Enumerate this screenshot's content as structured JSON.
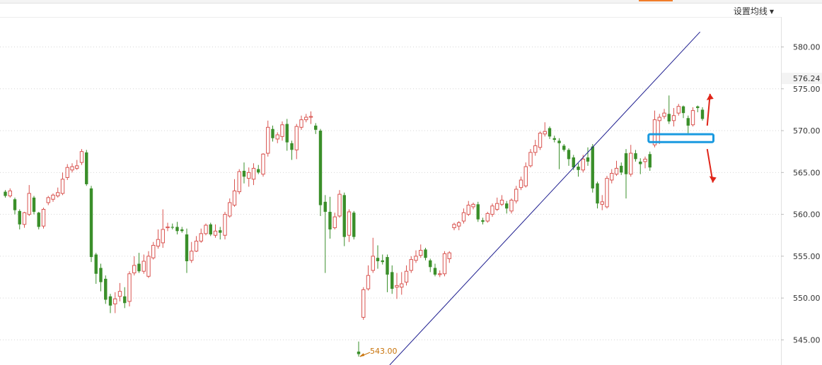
{
  "toolbar": {
    "ma_settings_label": "设置均线"
  },
  "chart_data": {
    "type": "candlestick",
    "y_axis": {
      "ticks": [
        545,
        550,
        555,
        560,
        565,
        570,
        575,
        580
      ],
      "ylim": [
        542.0,
        583.5
      ],
      "position": "right",
      "grid": "dotted-horizontal"
    },
    "current_price": "576.24",
    "low_annotation": {
      "label": "543.00",
      "value": 543.0
    },
    "colors": {
      "up": "#d9534f",
      "down": "#3a8f2a",
      "trendline": "#1d1d8f",
      "annotation": "#c8730a",
      "support_box": "#1a9ae0",
      "arrows": "#e02418"
    },
    "trendline": {
      "start": [
        80.5,
        542.0
      ],
      "end": [
        145.5,
        581.8
      ]
    },
    "support_zone": {
      "from_index": 135,
      "to_index": 148,
      "low": 568.8,
      "high": 569.4
    },
    "arrows": [
      {
        "direction": "up",
        "at_index": 147,
        "from": 570.6,
        "to": 574.4
      },
      {
        "direction": "down",
        "at_index": 147,
        "from": 567.8,
        "to": 563.8
      }
    ],
    "candles": [
      [
        562.7,
        562.2,
        562.9,
        562.0
      ],
      [
        562.2,
        562.8,
        563.1,
        562.0
      ],
      [
        561.8,
        560.5,
        562.0,
        560.0
      ],
      [
        560.4,
        558.8,
        560.6,
        558.2
      ],
      [
        558.8,
        560.2,
        560.3,
        558.4
      ],
      [
        560.0,
        562.5,
        563.5,
        559.8
      ],
      [
        562.0,
        560.3,
        562.2,
        560.0
      ],
      [
        560.2,
        558.5,
        560.3,
        558.2
      ],
      [
        558.6,
        560.6,
        560.8,
        558.3
      ],
      [
        561.4,
        562.0,
        562.2,
        561.1
      ],
      [
        561.8,
        562.3,
        562.5,
        561.5
      ],
      [
        562.2,
        562.6,
        563.2,
        562.0
      ],
      [
        562.5,
        564.2,
        565.0,
        562.3
      ],
      [
        564.4,
        565.6,
        566.0,
        564.1
      ],
      [
        565.3,
        565.7,
        566.1,
        565.0
      ],
      [
        565.5,
        565.8,
        566.5,
        565.3
      ],
      [
        566.2,
        567.5,
        567.8,
        565.9
      ],
      [
        567.4,
        563.6,
        567.7,
        563.4
      ],
      [
        563.1,
        554.9,
        563.4,
        554.3
      ],
      [
        555.2,
        552.9,
        555.4,
        551.7
      ],
      [
        553.6,
        551.9,
        554.1,
        550.8
      ],
      [
        552.3,
        549.8,
        552.7,
        549.3
      ],
      [
        550.2,
        549.1,
        550.5,
        548.2
      ],
      [
        549.3,
        549.9,
        550.7,
        548.2
      ],
      [
        550.2,
        550.8,
        551.8,
        549.6
      ],
      [
        550.2,
        549.4,
        551.3,
        548.8
      ],
      [
        549.6,
        552.9,
        553.2,
        549.0
      ],
      [
        553.0,
        553.9,
        555.0,
        552.7
      ],
      [
        554.1,
        553.2,
        555.4,
        553.0
      ],
      [
        553.2,
        554.4,
        555.2,
        552.9
      ],
      [
        552.6,
        555.0,
        555.6,
        552.4
      ],
      [
        554.8,
        556.3,
        556.7,
        554.6
      ],
      [
        556.2,
        557.0,
        558.2,
        555.9
      ],
      [
        556.6,
        558.2,
        560.6,
        556.0
      ],
      [
        558.4,
        558.5,
        559.0,
        558.0
      ],
      [
        558.5,
        558.4,
        558.9,
        558.2
      ],
      [
        558.5,
        558.0,
        559.1,
        557.6
      ],
      [
        558.2,
        558.0,
        558.5,
        557.8
      ],
      [
        557.6,
        554.4,
        558.3,
        553.0
      ],
      [
        554.5,
        555.6,
        556.7,
        554.2
      ],
      [
        555.6,
        556.8,
        557.4,
        555.5
      ],
      [
        556.8,
        557.7,
        558.3,
        556.6
      ],
      [
        557.7,
        558.7,
        558.9,
        557.5
      ],
      [
        558.8,
        557.6,
        559.0,
        557.4
      ],
      [
        557.5,
        558.0,
        558.8,
        557.2
      ],
      [
        558.1,
        557.8,
        558.5,
        557.0
      ],
      [
        557.5,
        560.0,
        560.3,
        557.0
      ],
      [
        559.8,
        561.4,
        561.9,
        559.6
      ],
      [
        561.1,
        562.8,
        564.2,
        560.9
      ],
      [
        562.7,
        565.1,
        565.4,
        562.4
      ],
      [
        565.2,
        564.5,
        566.2,
        563.7
      ],
      [
        564.3,
        565.0,
        565.6,
        563.3
      ],
      [
        564.2,
        565.5,
        566.1,
        563.5
      ],
      [
        565.4,
        565.0,
        565.9,
        564.8
      ],
      [
        564.8,
        567.2,
        567.3,
        564.5
      ],
      [
        567.3,
        570.4,
        571.2,
        566.9
      ],
      [
        570.2,
        569.1,
        570.6,
        568.7
      ],
      [
        569.0,
        569.5,
        569.8,
        568.5
      ],
      [
        569.3,
        570.7,
        571.1,
        568.8
      ],
      [
        570.8,
        568.6,
        571.4,
        567.6
      ],
      [
        568.5,
        567.7,
        568.8,
        566.5
      ],
      [
        567.7,
        570.5,
        570.8,
        566.6
      ],
      [
        570.4,
        571.3,
        571.8,
        570.1
      ],
      [
        571.3,
        571.6,
        572.0,
        571.0
      ],
      [
        571.6,
        571.7,
        572.3,
        570.8
      ],
      [
        570.6,
        570.1,
        570.9,
        569.6
      ],
      [
        570.0,
        561.1,
        570.2,
        559.8
      ],
      [
        561.5,
        560.3,
        562.3,
        553.0
      ],
      [
        560.3,
        558.2,
        562.1,
        557.1
      ],
      [
        558.4,
        559.7,
        560.2,
        558.2
      ],
      [
        559.8,
        562.4,
        562.9,
        559.6
      ],
      [
        562.3,
        557.3,
        562.6,
        556.2
      ],
      [
        557.5,
        560.3,
        560.6,
        556.7
      ],
      [
        560.2,
        557.3,
        560.4,
        557.0
      ],
      [
        543.6,
        543.3,
        544.8,
        543.0
      ],
      [
        547.7,
        551.0,
        551.3,
        547.4
      ],
      [
        551.1,
        552.7,
        553.9,
        550.9
      ],
      [
        553.3,
        555.0,
        557.2,
        553.0
      ],
      [
        554.8,
        554.4,
        556.3,
        553.5
      ],
      [
        554.5,
        554.3,
        555.2,
        554.0
      ],
      [
        554.9,
        552.8,
        555.2,
        550.7
      ],
      [
        553.1,
        551.1,
        553.9,
        550.5
      ],
      [
        551.3,
        551.5,
        553.0,
        549.9
      ],
      [
        551.3,
        551.7,
        553.1,
        550.4
      ],
      [
        551.9,
        553.2,
        553.9,
        551.5
      ],
      [
        553.3,
        554.6,
        555.0,
        553.0
      ],
      [
        554.5,
        555.0,
        555.7,
        554.2
      ],
      [
        555.1,
        555.7,
        556.4,
        554.8
      ],
      [
        555.8,
        554.8,
        556.0,
        554.5
      ],
      [
        554.5,
        553.7,
        554.7,
        553.1
      ],
      [
        553.6,
        552.8,
        554.1,
        552.6
      ],
      [
        552.8,
        552.9,
        553.3,
        552.5
      ],
      [
        552.9,
        555.3,
        555.6,
        552.6
      ],
      [
        554.7,
        555.4,
        555.6,
        554.2
      ],
      [
        558.4,
        558.8,
        559.0,
        558.1
      ],
      [
        558.6,
        559.0,
        559.2,
        558.1
      ],
      [
        559.2,
        560.2,
        560.7,
        558.9
      ],
      [
        560.0,
        561.1,
        561.6,
        559.8
      ],
      [
        560.9,
        561.2,
        561.4,
        560.6
      ],
      [
        561.2,
        559.4,
        561.5,
        559.1
      ],
      [
        559.3,
        559.1,
        559.6,
        558.8
      ],
      [
        559.2,
        560.1,
        560.3,
        559.0
      ],
      [
        560.0,
        561.0,
        561.3,
        559.7
      ],
      [
        560.6,
        561.3,
        562.0,
        560.4
      ],
      [
        561.2,
        561.7,
        562.3,
        561.0
      ],
      [
        561.3,
        560.7,
        561.6,
        560.1
      ],
      [
        560.4,
        561.7,
        561.9,
        560.1
      ],
      [
        561.6,
        563.0,
        563.4,
        561.3
      ],
      [
        563.2,
        564.1,
        564.5,
        562.9
      ],
      [
        563.4,
        565.7,
        566.2,
        563.2
      ],
      [
        565.8,
        567.4,
        567.8,
        565.6
      ],
      [
        567.4,
        568.2,
        568.9,
        567.0
      ],
      [
        568.0,
        569.7,
        569.9,
        567.7
      ],
      [
        569.6,
        569.9,
        571.0,
        569.3
      ],
      [
        570.3,
        569.3,
        570.5,
        569.0
      ],
      [
        569.1,
        568.9,
        569.4,
        568.6
      ],
      [
        568.8,
        568.5,
        569.1,
        565.4
      ],
      [
        568.2,
        567.7,
        568.4,
        567.5
      ],
      [
        567.7,
        566.6,
        567.9,
        565.8
      ],
      [
        566.8,
        565.6,
        567.1,
        565.3
      ],
      [
        565.7,
        565.3,
        566.1,
        564.5
      ],
      [
        565.3,
        566.6,
        567.1,
        565.0
      ],
      [
        566.8,
        566.3,
        568.0,
        565.8
      ],
      [
        568.1,
        563.1,
        568.4,
        562.6
      ],
      [
        563.7,
        561.3,
        563.9,
        560.7
      ],
      [
        561.2,
        561.5,
        562.3,
        560.5
      ],
      [
        560.9,
        564.3,
        564.6,
        560.7
      ],
      [
        564.1,
        564.9,
        565.4,
        563.7
      ],
      [
        564.8,
        565.5,
        566.4,
        564.6
      ],
      [
        565.8,
        565.0,
        566.2,
        564.7
      ],
      [
        567.3,
        564.8,
        567.8,
        561.9
      ],
      [
        564.8,
        567.3,
        568.3,
        564.5
      ],
      [
        567.3,
        566.6,
        567.7,
        566.3
      ],
      [
        566.3,
        566.0,
        566.7,
        564.8
      ],
      [
        566.3,
        566.6,
        566.9,
        565.5
      ],
      [
        567.2,
        565.6,
        567.5,
        565.2
      ],
      [
        568.3,
        571.3,
        572.4,
        568.0
      ],
      [
        571.2,
        571.6,
        572.0,
        568.4
      ],
      [
        571.7,
        572.1,
        572.6,
        571.4
      ],
      [
        572.0,
        571.1,
        574.2,
        570.8
      ],
      [
        571.2,
        571.8,
        572.7,
        570.5
      ],
      [
        572.1,
        572.9,
        573.2,
        571.8
      ],
      [
        572.9,
        572.1,
        573.0,
        571.5
      ],
      [
        571.5,
        570.6,
        571.8,
        569.7
      ],
      [
        570.7,
        572.4,
        572.8,
        570.5
      ],
      [
        572.9,
        572.7,
        573.0,
        572.2
      ],
      [
        572.5,
        571.4,
        572.8,
        571.2
      ]
    ]
  }
}
